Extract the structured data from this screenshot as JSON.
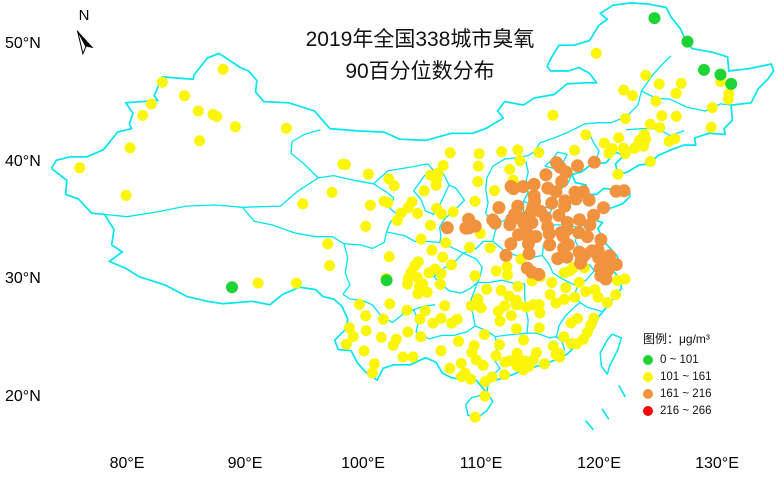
{
  "figure": {
    "title_line1": "2019年全国338城市臭氧",
    "title_line2": "90百分位数分布",
    "north_label": "N"
  },
  "chart_data": {
    "type": "scatter",
    "title": "2019年全国338城市臭氧 90百分位数分布",
    "units": "μg/m³",
    "map_line_color": "#00E5F0",
    "x_axis": {
      "ticks": [
        {
          "label": "80°E",
          "value": 80
        },
        {
          "label": "90°E",
          "value": 90
        },
        {
          "label": "100°E",
          "value": 100
        },
        {
          "label": "110°E",
          "value": 110
        },
        {
          "label": "120°E",
          "value": 120
        },
        {
          "label": "130°E",
          "value": 130
        }
      ]
    },
    "y_axis": {
      "ticks": [
        {
          "label": "50°N",
          "value": 50
        },
        {
          "label": "40°N",
          "value": 40
        },
        {
          "label": "30°N",
          "value": 30
        },
        {
          "label": "20°N",
          "value": 20
        }
      ]
    },
    "legend": {
      "title": "图例：μg/m³",
      "categories": [
        {
          "key": "green",
          "label": "0 ~ 101",
          "color": "#1ED435"
        },
        {
          "key": "yellow",
          "label": "101 ~ 161",
          "color": "#FBF50A"
        },
        {
          "key": "orange",
          "label": "161 ~ 216",
          "color": "#F0923E"
        },
        {
          "key": "red",
          "label": "216 ~ 266",
          "color": "#F40B0B"
        }
      ]
    },
    "points": {
      "green": [
        [
          88.9,
          29.3
        ],
        [
          102.0,
          29.9
        ],
        [
          124.7,
          52.2
        ],
        [
          127.5,
          50.2
        ],
        [
          128.9,
          47.8
        ],
        [
          130.3,
          47.4
        ],
        [
          131.2,
          46.6
        ]
      ],
      "yellow": [
        [
          87.62,
          43.82
        ],
        [
          84.87,
          45.6
        ],
        [
          86.03,
          44.3
        ],
        [
          87.3,
          44.01
        ],
        [
          89.19,
          42.95
        ],
        [
          93.51,
          42.83
        ],
        [
          86.15,
          41.77
        ],
        [
          80.26,
          41.17
        ],
        [
          75.99,
          39.47
        ],
        [
          79.92,
          37.12
        ],
        [
          81.33,
          43.92
        ],
        [
          82.07,
          44.9
        ],
        [
          82.99,
          46.75
        ],
        [
          88.14,
          47.85
        ],
        [
          91.11,
          29.66
        ],
        [
          97.17,
          31.14
        ],
        [
          94.36,
          29.65
        ],
        [
          101.78,
          36.62
        ],
        [
          102.1,
          36.5
        ],
        [
          94.9,
          36.4
        ],
        [
          97.01,
          33.0
        ],
        [
          97.37,
          37.37
        ],
        [
          100.62,
          36.28
        ],
        [
          100.24,
          34.48
        ],
        [
          103.83,
          36.06
        ],
        [
          98.29,
          39.77
        ],
        [
          98.51,
          39.74
        ],
        [
          100.45,
          38.93
        ],
        [
          102.64,
          37.93
        ],
        [
          102.19,
          38.52
        ],
        [
          104.14,
          36.55
        ],
        [
          104.63,
          35.58
        ],
        [
          105.72,
          34.58
        ],
        [
          106.66,
          35.54
        ],
        [
          107.64,
          35.71
        ],
        [
          104.92,
          33.4
        ],
        [
          103.21,
          35.6
        ],
        [
          102.91,
          34.98
        ],
        [
          106.23,
          38.49
        ],
        [
          106.38,
          39.02
        ],
        [
          106.2,
          37.98
        ],
        [
          105.19,
          37.5
        ],
        [
          106.24,
          36.02
        ],
        [
          109.73,
          38.29
        ],
        [
          109.49,
          36.6
        ],
        [
          107.02,
          33.07
        ],
        [
          109.03,
          32.69
        ],
        [
          109.94,
          33.87
        ],
        [
          111.75,
          40.84
        ],
        [
          109.84,
          40.66
        ],
        [
          106.8,
          39.66
        ],
        [
          109.78,
          39.61
        ],
        [
          107.39,
          40.74
        ],
        [
          113.13,
          40.99
        ],
        [
          116.09,
          43.94
        ],
        [
          118.89,
          42.26
        ],
        [
          122.24,
          43.65
        ],
        [
          119.77,
          49.22
        ],
        [
          122.09,
          46.08
        ],
        [
          105.73,
          38.84
        ],
        [
          113.3,
          40.08
        ],
        [
          112.43,
          39.33
        ],
        [
          112.73,
          38.41
        ],
        [
          114.89,
          40.77
        ],
        [
          117.93,
          40.95
        ],
        [
          111.14,
          37.52
        ],
        [
          123.43,
          41.8
        ],
        [
          121.61,
          38.91
        ],
        [
          122.99,
          41.11
        ],
        [
          123.96,
          41.88
        ],
        [
          123.77,
          41.3
        ],
        [
          124.35,
          40.0
        ],
        [
          121.13,
          41.1
        ],
        [
          122.22,
          40.67
        ],
        [
          121.67,
          42.02
        ],
        [
          123.18,
          41.27
        ],
        [
          122.07,
          41.12
        ],
        [
          123.84,
          42.29
        ],
        [
          120.45,
          41.57
        ],
        [
          120.84,
          40.71
        ],
        [
          125.32,
          43.9
        ],
        [
          126.55,
          43.84
        ],
        [
          124.35,
          43.17
        ],
        [
          125.14,
          42.89
        ],
        [
          125.94,
          41.73
        ],
        [
          126.42,
          41.94
        ],
        [
          124.82,
          45.14
        ],
        [
          122.84,
          45.62
        ],
        [
          129.51,
          42.91
        ],
        [
          126.53,
          45.8
        ],
        [
          123.96,
          47.34
        ],
        [
          130.97,
          45.3
        ],
        [
          125.1,
          46.59
        ],
        [
          129.6,
          44.59
        ],
        [
          126.97,
          46.65
        ],
        [
          130.32,
          46.8
        ],
        [
          131.0,
          45.77
        ],
        [
          110.79,
          32.65
        ],
        [
          113.38,
          31.69
        ],
        [
          115.04,
          30.2
        ],
        [
          114.32,
          29.84
        ],
        [
          112.24,
          30.33
        ],
        [
          111.29,
          30.69
        ],
        [
          109.49,
          30.27
        ],
        [
          112.2,
          31.04
        ],
        [
          104.07,
          30.57
        ],
        [
          104.68,
          31.47
        ],
        [
          104.4,
          31.13
        ],
        [
          105.84,
          32.44
        ],
        [
          106.11,
          30.84
        ],
        [
          107.5,
          31.21
        ],
        [
          106.75,
          31.86
        ],
        [
          106.63,
          30.46
        ],
        [
          105.59,
          30.53
        ],
        [
          104.63,
          30.12
        ],
        [
          105.06,
          29.58
        ],
        [
          104.78,
          29.35
        ],
        [
          104.64,
          28.75
        ],
        [
          105.44,
          28.87
        ],
        [
          103.77,
          29.57
        ],
        [
          103.85,
          30.08
        ],
        [
          102.22,
          31.9
        ],
        [
          101.96,
          30.05
        ],
        [
          102.27,
          27.88
        ],
        [
          101.72,
          26.58
        ],
        [
          106.55,
          29.56
        ],
        [
          102.83,
          24.88
        ],
        [
          103.8,
          25.49
        ],
        [
          102.55,
          24.35
        ],
        [
          103.72,
          27.34
        ],
        [
          100.23,
          26.86
        ],
        [
          100.97,
          22.79
        ],
        [
          100.09,
          23.88
        ],
        [
          101.55,
          25.04
        ],
        [
          103.38,
          23.36
        ],
        [
          104.24,
          23.37
        ],
        [
          100.8,
          22.01
        ],
        [
          100.27,
          25.61
        ],
        [
          99.17,
          25.11
        ],
        [
          98.59,
          24.44
        ],
        [
          98.86,
          25.85
        ],
        [
          99.7,
          27.83
        ],
        [
          106.63,
          26.65
        ],
        [
          104.83,
          26.59
        ],
        [
          106.93,
          27.73
        ],
        [
          105.93,
          26.25
        ],
        [
          105.28,
          27.3
        ],
        [
          109.19,
          27.73
        ],
        [
          104.9,
          25.09
        ],
        [
          107.98,
          26.58
        ],
        [
          107.52,
          26.25
        ],
        [
          108.32,
          22.82
        ],
        [
          109.42,
          24.33
        ],
        [
          110.29,
          25.28
        ],
        [
          111.28,
          23.48
        ],
        [
          109.12,
          21.48
        ],
        [
          108.35,
          21.69
        ],
        [
          108.65,
          21.98
        ],
        [
          109.6,
          23.11
        ],
        [
          110.18,
          22.65
        ],
        [
          106.62,
          23.9
        ],
        [
          111.57,
          24.4
        ],
        [
          108.09,
          24.7
        ],
        [
          109.22,
          23.75
        ],
        [
          107.36,
          22.4
        ],
        [
          113.26,
          23.13
        ],
        [
          114.06,
          22.55
        ],
        [
          113.58,
          22.27
        ],
        [
          116.68,
          23.35
        ],
        [
          113.12,
          23.02
        ],
        [
          113.6,
          24.81
        ],
        [
          110.36,
          21.27
        ],
        [
          112.47,
          23.05
        ],
        [
          113.08,
          22.58
        ],
        [
          110.93,
          21.66
        ],
        [
          114.42,
          23.11
        ],
        [
          116.12,
          24.29
        ],
        [
          115.38,
          22.79
        ],
        [
          114.7,
          23.74
        ],
        [
          111.98,
          21.86
        ],
        [
          113.06,
          23.68
        ],
        [
          113.75,
          23.02
        ],
        [
          113.39,
          22.52
        ],
        [
          116.62,
          23.66
        ],
        [
          116.37,
          23.55
        ],
        [
          112.04,
          22.93
        ],
        [
          110.33,
          20.03
        ],
        [
          109.51,
          18.25
        ],
        [
          112.98,
          28.19
        ],
        [
          113.13,
          27.83
        ],
        [
          112.94,
          27.83
        ],
        [
          112.57,
          26.89
        ],
        [
          111.47,
          27.24
        ],
        [
          113.13,
          29.36
        ],
        [
          111.7,
          29.03
        ],
        [
          110.48,
          29.12
        ],
        [
          112.36,
          28.55
        ],
        [
          113.01,
          25.77
        ],
        [
          111.61,
          26.42
        ],
        [
          110.0,
          27.55
        ],
        [
          112.0,
          27.7
        ],
        [
          109.74,
          28.31
        ],
        [
          115.86,
          28.68
        ],
        [
          117.18,
          29.27
        ],
        [
          113.85,
          27.62
        ],
        [
          116.0,
          29.7
        ],
        [
          114.92,
          27.82
        ],
        [
          117.07,
          28.26
        ],
        [
          114.93,
          25.83
        ],
        [
          114.99,
          27.11
        ],
        [
          114.42,
          27.8
        ],
        [
          116.36,
          27.95
        ],
        [
          117.94,
          28.45
        ],
        [
          119.3,
          26.07
        ],
        [
          118.09,
          24.48
        ],
        [
          119.0,
          25.45
        ],
        [
          117.64,
          26.26
        ],
        [
          118.68,
          24.88
        ],
        [
          117.65,
          24.51
        ],
        [
          118.18,
          26.64
        ],
        [
          117.02,
          25.08
        ],
        [
          119.55,
          26.67
        ],
        [
          121.55,
          29.87
        ],
        [
          120.7,
          28.0
        ],
        [
          119.65,
          29.08
        ],
        [
          118.87,
          28.94
        ],
        [
          122.2,
          30.0
        ],
        [
          121.42,
          28.66
        ],
        [
          119.92,
          28.45
        ],
        [
          117.06,
          30.54
        ],
        [
          117.49,
          30.66
        ],
        [
          118.32,
          29.71
        ],
        [
          118.75,
          30.94
        ],
        [
          117.81,
          30.95
        ]
      ],
      "orange": [
        [
          116.4,
          39.9
        ],
        [
          117.2,
          39.1
        ],
        [
          114.5,
          38.05
        ],
        [
          115.5,
          38.87
        ],
        [
          116.7,
          39.52
        ],
        [
          118.18,
          39.63
        ],
        [
          119.6,
          39.94
        ],
        [
          116.84,
          38.3
        ],
        [
          115.67,
          37.74
        ],
        [
          114.5,
          37.07
        ],
        [
          114.54,
          36.6
        ],
        [
          116.36,
          37.43
        ],
        [
          115.99,
          36.46
        ],
        [
          117.12,
          36.65
        ],
        [
          118.05,
          36.81
        ],
        [
          119.16,
          36.71
        ],
        [
          118.67,
          37.43
        ],
        [
          117.97,
          37.38
        ],
        [
          117.09,
          36.2
        ],
        [
          116.59,
          35.41
        ],
        [
          115.48,
          35.23
        ],
        [
          117.32,
          34.81
        ],
        [
          118.35,
          35.05
        ],
        [
          119.53,
          35.42
        ],
        [
          120.38,
          36.07
        ],
        [
          121.45,
          37.46
        ],
        [
          122.12,
          37.51
        ],
        [
          113.62,
          34.75
        ],
        [
          114.31,
          34.8
        ],
        [
          112.45,
          34.62
        ],
        [
          114.39,
          36.1
        ],
        [
          114.3,
          35.75
        ],
        [
          113.93,
          35.3
        ],
        [
          113.25,
          35.22
        ],
        [
          115.03,
          35.76
        ],
        [
          113.85,
          34.04
        ],
        [
          114.02,
          33.58
        ],
        [
          115.65,
          34.44
        ],
        [
          114.65,
          33.62
        ],
        [
          114.02,
          33.0
        ],
        [
          113.19,
          33.77
        ],
        [
          112.53,
          33.0
        ],
        [
          111.2,
          34.77
        ],
        [
          112.6,
          35.07
        ],
        [
          108.94,
          34.34
        ],
        [
          108.71,
          34.33
        ],
        [
          109.51,
          34.5
        ],
        [
          108.95,
          35.08
        ],
        [
          107.14,
          34.36
        ],
        [
          112.55,
          37.87
        ],
        [
          113.58,
          37.86
        ],
        [
          113.12,
          36.2
        ],
        [
          112.85,
          35.5
        ],
        [
          111.52,
          36.08
        ],
        [
          111.0,
          35.03
        ],
        [
          112.75,
          37.69
        ],
        [
          117.28,
          34.2
        ],
        [
          116.96,
          33.65
        ],
        [
          116.8,
          33.96
        ],
        [
          115.78,
          33.85
        ],
        [
          115.81,
          32.9
        ],
        [
          117.39,
          32.92
        ],
        [
          117.0,
          32.63
        ],
        [
          117.28,
          31.86
        ],
        [
          118.32,
          32.3
        ],
        [
          116.5,
          31.74
        ],
        [
          118.8,
          32.06
        ],
        [
          119.41,
          32.39
        ],
        [
          119.92,
          32.46
        ],
        [
          119.97,
          31.81
        ],
        [
          120.3,
          31.57
        ],
        [
          120.58,
          31.3
        ],
        [
          120.89,
          31.98
        ],
        [
          120.16,
          33.35
        ],
        [
          119.02,
          33.61
        ],
        [
          119.22,
          34.6
        ],
        [
          118.28,
          33.96
        ],
        [
          121.47,
          31.23
        ],
        [
          120.76,
          30.77
        ],
        [
          120.15,
          30.29
        ],
        [
          120.09,
          30.89
        ],
        [
          120.58,
          30.0
        ],
        [
          114.3,
          30.59
        ],
        [
          114.89,
          30.39
        ],
        [
          113.92,
          30.92
        ],
        [
          112.12,
          32.01
        ],
        [
          114.07,
          32.15
        ],
        [
          118.51,
          31.67
        ],
        [
          118.43,
          31.35
        ]
      ],
      "red": []
    }
  }
}
